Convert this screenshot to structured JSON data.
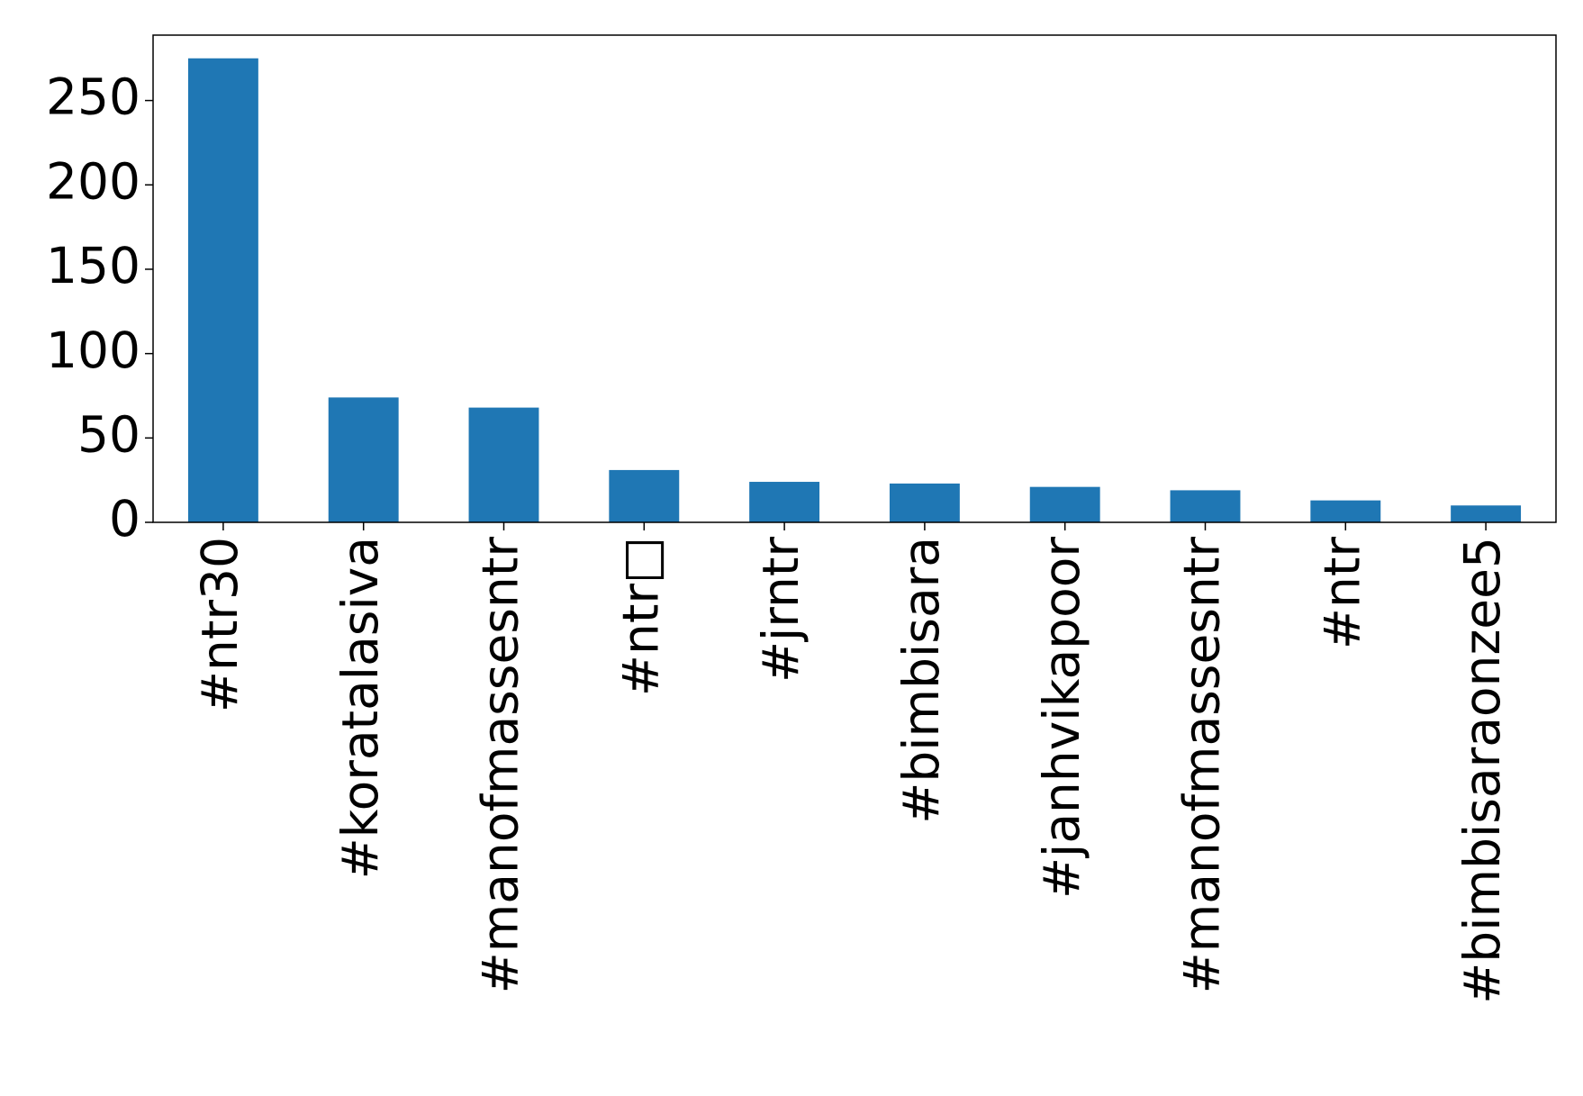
{
  "chart_data": {
    "type": "bar",
    "categories": [
      "#ntr30",
      "#koratalasiva",
      "#manofmassesntr",
      "#ntr□",
      "#jrntr",
      "#bimbisara",
      "#janhvikapoor",
      "#manofmassesntr",
      "#ntr",
      "#bimbisaraonzee5"
    ],
    "values": [
      275,
      74,
      68,
      31,
      24,
      23,
      21,
      19,
      13,
      10
    ],
    "color": "#1f77b4",
    "ylim": [
      0,
      288.75
    ],
    "yticks": [
      0,
      50,
      100,
      150,
      200,
      250
    ],
    "grid": false
  }
}
